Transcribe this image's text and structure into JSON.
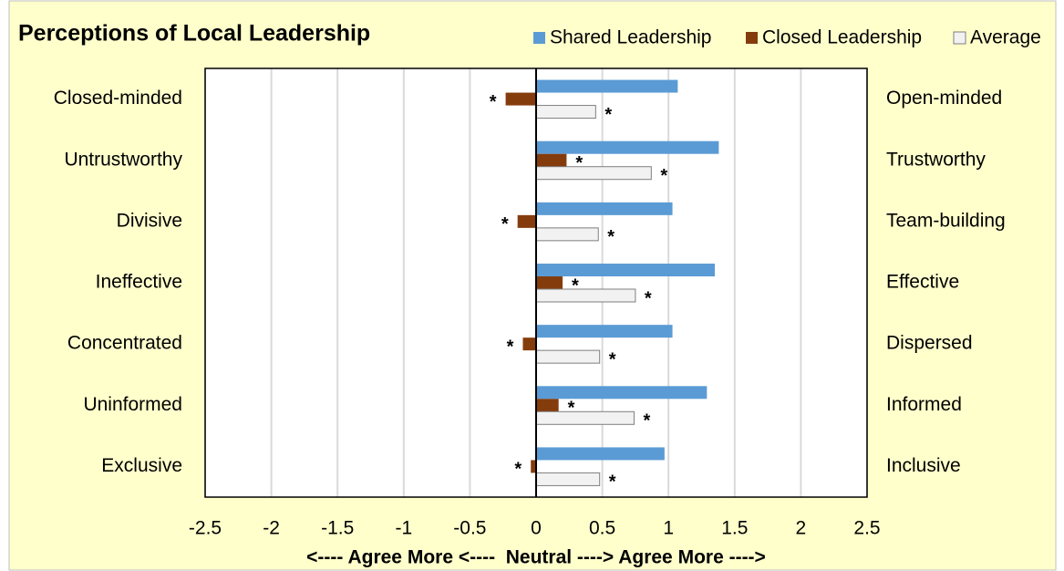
{
  "chart_data": {
    "type": "bar",
    "orientation": "horizontal",
    "title": "Perceptions of Local Leadership",
    "categories": [
      "Closed-minded",
      "Untrustworthy",
      "Divisive",
      "Ineffective",
      "Concentrated",
      "Uninformed",
      "Exclusive"
    ],
    "right_categories": [
      "Open-minded",
      "Trustworthy",
      "Team-building",
      "Effective",
      "Dispersed",
      "Informed",
      "Inclusive"
    ],
    "series": [
      {
        "name": "Shared Leadership",
        "color": "#5b9bd5",
        "values": [
          1.07,
          1.38,
          1.03,
          1.35,
          1.03,
          1.29,
          0.97
        ]
      },
      {
        "name": "Closed Leadership",
        "color": "#843c0c",
        "values": [
          -0.23,
          0.23,
          -0.14,
          0.2,
          -0.1,
          0.17,
          -0.04
        ],
        "value_labels": [
          "*",
          "*",
          "*",
          "*",
          "*",
          "*",
          "*"
        ]
      },
      {
        "name": "Average",
        "color": "#f2f2f2",
        "values": [
          0.45,
          0.87,
          0.47,
          0.75,
          0.48,
          0.74,
          0.48
        ],
        "value_labels": [
          "*",
          "*",
          "*",
          "*",
          "*",
          "*",
          "*"
        ]
      }
    ],
    "xlabel": "<---- Agree More <----  Neutral ----> Agree More ---->",
    "xlim": [
      -2.5,
      2.5
    ],
    "xticks": [
      -2.5,
      -2,
      -1.5,
      -1,
      -0.5,
      0,
      0.5,
      1,
      1.5,
      2,
      2.5
    ],
    "grid": true,
    "legend": "top-right"
  }
}
